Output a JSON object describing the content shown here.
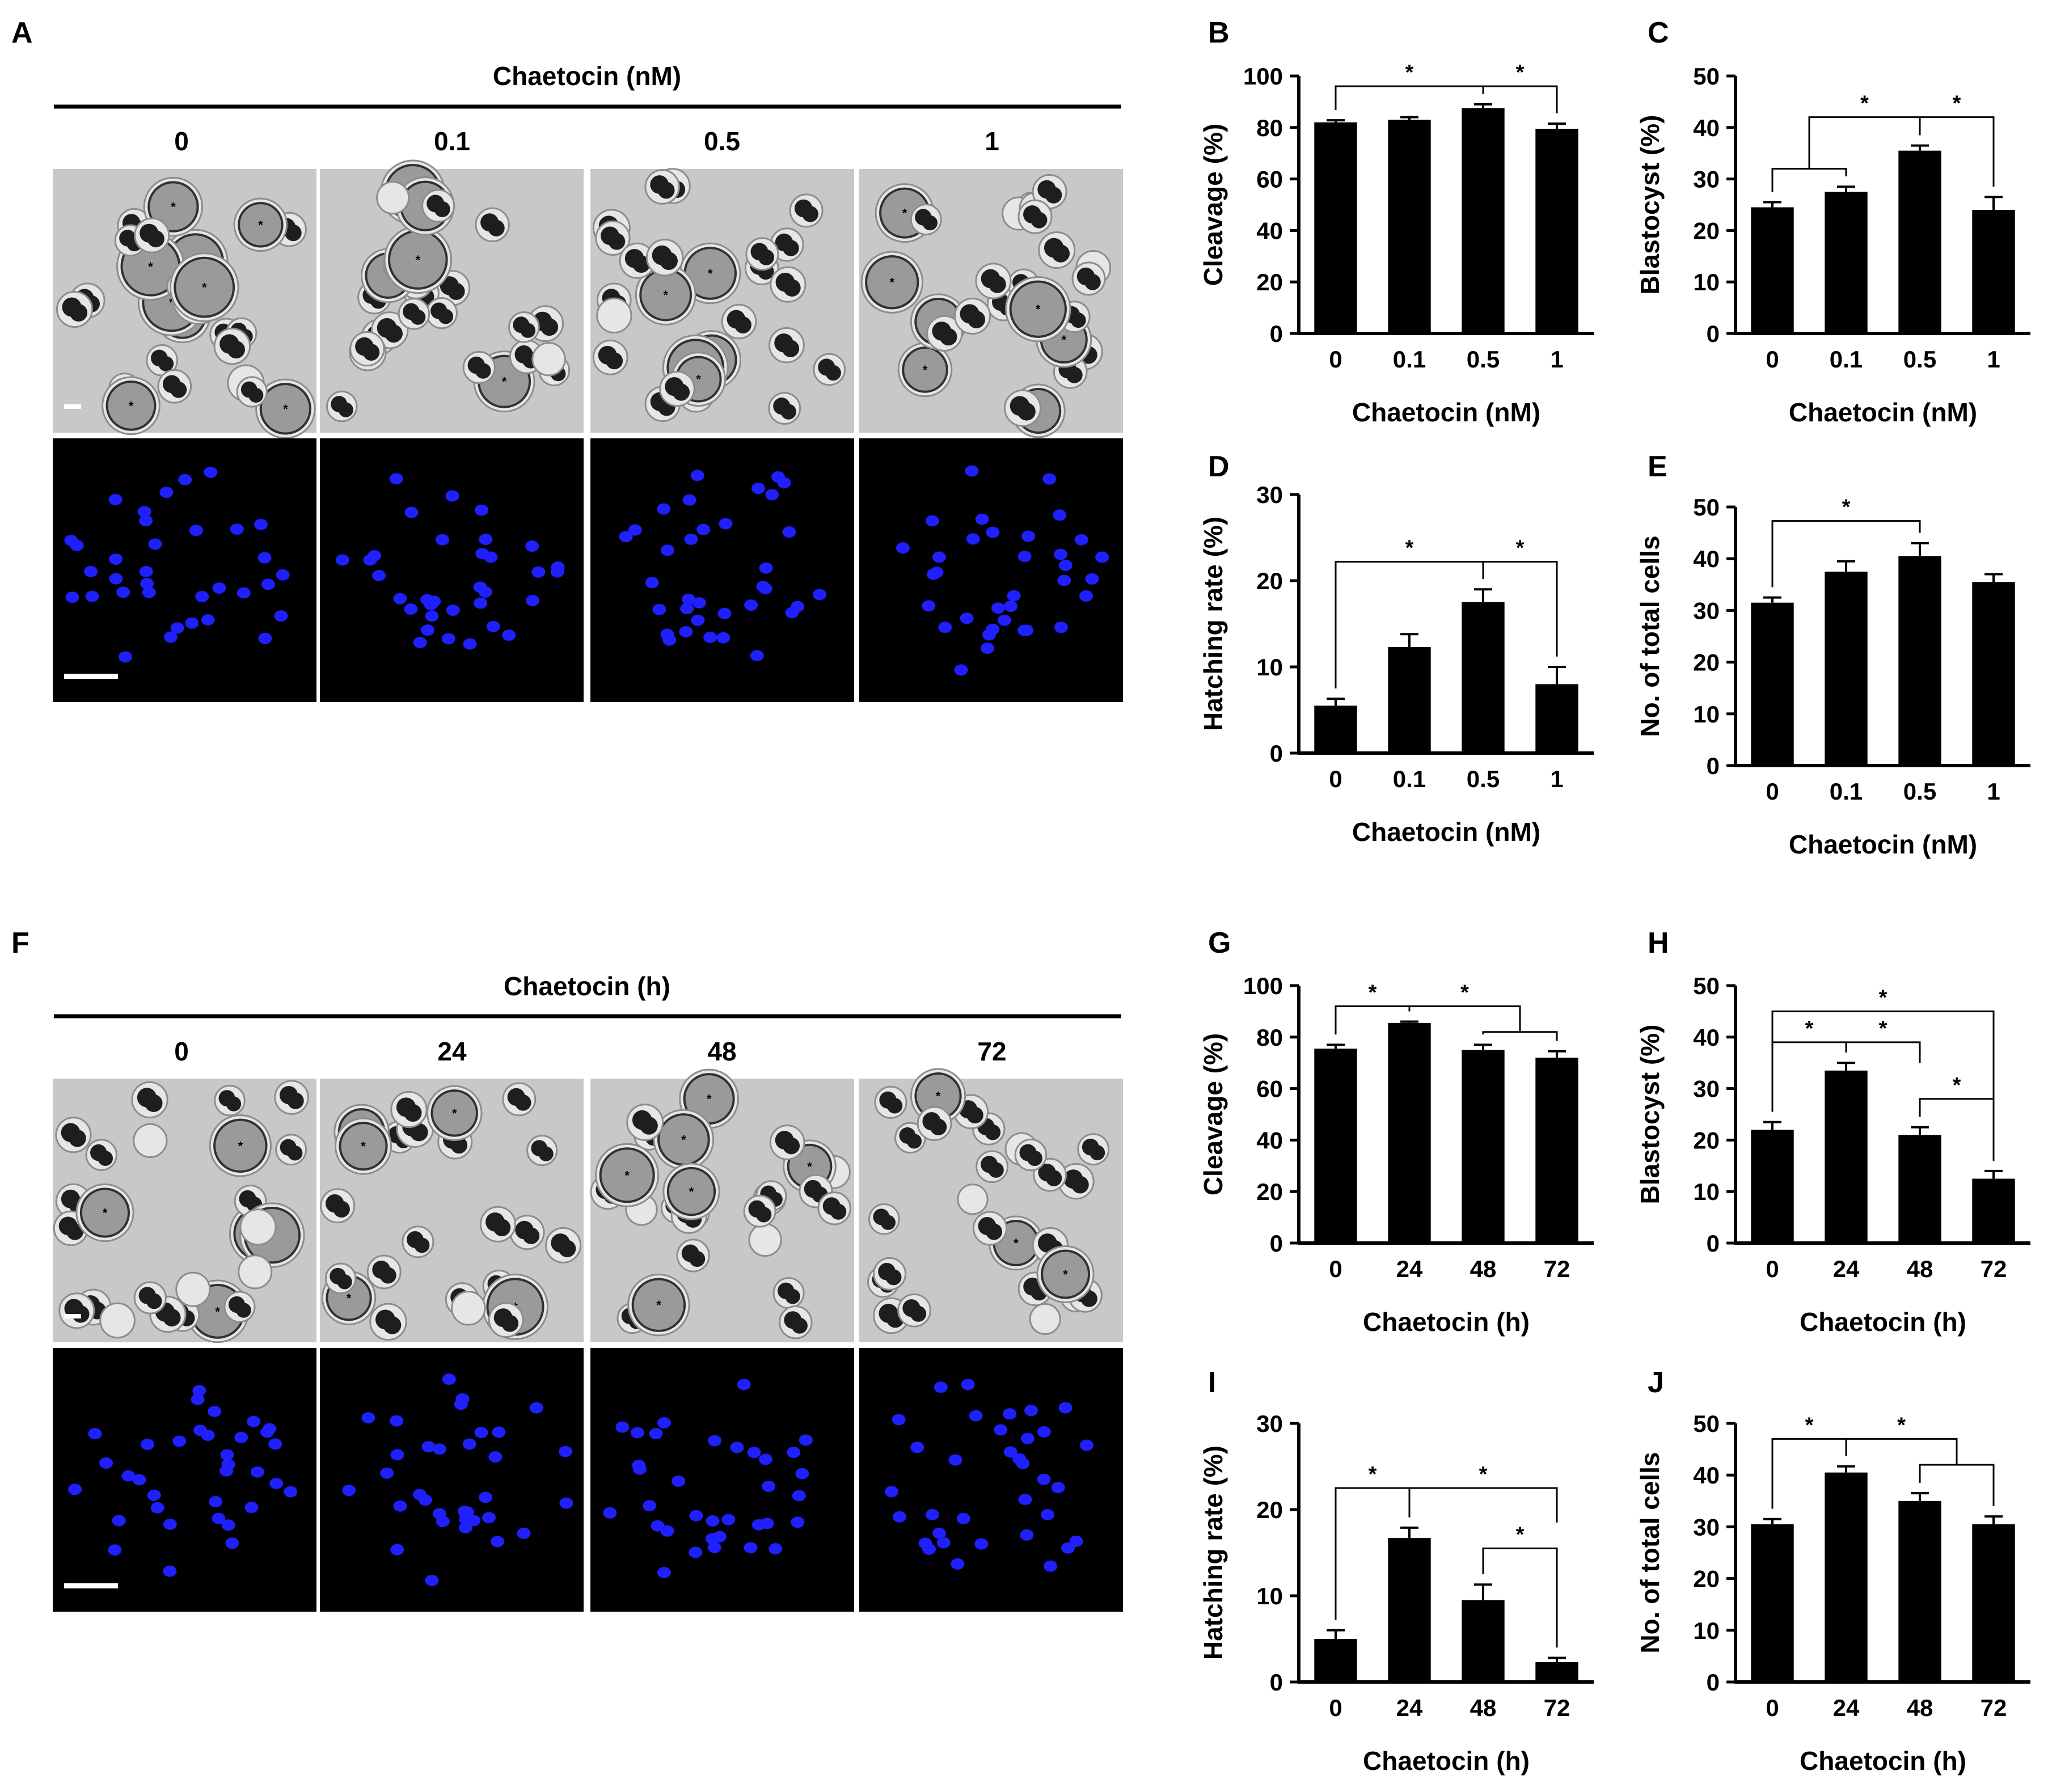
{
  "panels": {
    "A": {
      "letter": "A",
      "header": "Chaetocin (nM)",
      "columns": [
        "0",
        "0.1",
        "0.5",
        "1"
      ]
    },
    "F": {
      "letter": "F",
      "header": "Chaetocin (h)",
      "columns": [
        "0",
        "24",
        "48",
        "72"
      ]
    }
  },
  "chart_data": [
    {
      "id": "B",
      "type": "bar",
      "letter": "B",
      "categories": [
        "0",
        "0.1",
        "0.5",
        "1"
      ],
      "values": [
        82,
        83,
        87.5,
        79.5
      ],
      "errors": [
        0.8,
        1,
        1.5,
        2
      ],
      "ylim": [
        0,
        100
      ],
      "yticks": [
        0,
        20,
        40,
        60,
        80,
        100
      ],
      "ylabel": "Cleavage (%)",
      "xlabel": "Chaetocin (nM)",
      "grid": false,
      "significance": [
        {
          "kind": "pair",
          "i": 0,
          "j": 2,
          "level": 96,
          "label": "*"
        },
        {
          "kind": "pair",
          "i": 2,
          "j": 3,
          "level": 96,
          "label": "*"
        }
      ]
    },
    {
      "id": "C",
      "type": "bar",
      "letter": "C",
      "categories": [
        "0",
        "0.1",
        "0.5",
        "1"
      ],
      "values": [
        24.5,
        27.5,
        35.5,
        24
      ],
      "errors": [
        1,
        1,
        1,
        2.5
      ],
      "ylim": [
        0,
        50
      ],
      "yticks": [
        0,
        10,
        20,
        30,
        40,
        50
      ],
      "ylabel": "Blastocyst (%)",
      "xlabel": "Chaetocin (nM)",
      "grid": false,
      "significance": [
        {
          "kind": "group",
          "from": [
            0,
            1
          ],
          "level1": 32,
          "to": 2,
          "level2": 42,
          "label": "*"
        },
        {
          "kind": "pair",
          "i": 2,
          "j": 3,
          "level": 42,
          "label": "*"
        }
      ]
    },
    {
      "id": "D",
      "type": "bar",
      "letter": "D",
      "categories": [
        "0",
        "0.1",
        "0.5",
        "1"
      ],
      "values": [
        5.5,
        12.3,
        17.5,
        8
      ],
      "errors": [
        0.8,
        1.5,
        1.5,
        2
      ],
      "ylim": [
        0,
        30
      ],
      "yticks": [
        0,
        10,
        20,
        30
      ],
      "ylabel": "Hatching rate (%)",
      "xlabel": "Chaetocin (nM)",
      "grid": false,
      "significance": [
        {
          "kind": "pair",
          "i": 0,
          "j": 2,
          "level": 22.2,
          "label": "*"
        },
        {
          "kind": "pair",
          "i": 2,
          "j": 3,
          "level": 22.2,
          "label": "*"
        }
      ]
    },
    {
      "id": "E",
      "type": "bar",
      "letter": "E",
      "categories": [
        "0",
        "0.1",
        "0.5",
        "1"
      ],
      "values": [
        31.5,
        37.5,
        40.5,
        35.5
      ],
      "errors": [
        1,
        2,
        2.5,
        1.5
      ],
      "ylim": [
        0,
        50
      ],
      "yticks": [
        0,
        10,
        20,
        30,
        40,
        50
      ],
      "ylabel": "No. of total cells",
      "xlabel": "Chaetocin (nM)",
      "grid": false,
      "significance": [
        {
          "kind": "pair",
          "i": 0,
          "j": 2,
          "level": 47.3,
          "label": "*"
        }
      ]
    },
    {
      "id": "G",
      "type": "bar",
      "letter": "G",
      "categories": [
        "0",
        "24",
        "48",
        "72"
      ],
      "values": [
        75.5,
        85.5,
        75,
        72
      ],
      "errors": [
        1.5,
        0.5,
        2,
        2.5
      ],
      "ylim": [
        0,
        100
      ],
      "yticks": [
        0,
        20,
        40,
        60,
        80,
        100
      ],
      "ylabel": "Cleavage (%)",
      "xlabel": "Chaetocin (h)",
      "grid": false,
      "significance": [
        {
          "kind": "pair",
          "i": 0,
          "j": 1,
          "level": 92,
          "label": "*"
        },
        {
          "kind": "group",
          "from": [
            2,
            3
          ],
          "level1": 82,
          "to": 1,
          "level2": 92,
          "label": "*"
        }
      ]
    },
    {
      "id": "H",
      "type": "bar",
      "letter": "H",
      "categories": [
        "0",
        "24",
        "48",
        "72"
      ],
      "values": [
        22,
        33.5,
        21,
        12.5
      ],
      "errors": [
        1.5,
        1.5,
        1.5,
        1.5
      ],
      "ylim": [
        0,
        50
      ],
      "yticks": [
        0,
        10,
        20,
        30,
        40,
        50
      ],
      "ylabel": "Blastocyst (%)",
      "xlabel": "Chaetocin (h)",
      "grid": false,
      "significance": [
        {
          "kind": "pair",
          "i": 0,
          "j": 3,
          "level": 45,
          "label": "*"
        },
        {
          "kind": "pair",
          "i": 0,
          "j": 1,
          "level": 39,
          "label": "*"
        },
        {
          "kind": "pair",
          "i": 1,
          "j": 2,
          "level": 39,
          "label": "*",
          "drop_j": 35
        },
        {
          "kind": "pair",
          "i": 2,
          "j": 3,
          "level": 28,
          "label": "*"
        }
      ]
    },
    {
      "id": "I",
      "type": "bar",
      "letter": "I",
      "categories": [
        "0",
        "24",
        "48",
        "72"
      ],
      "values": [
        5,
        16.7,
        9.5,
        2.3
      ],
      "errors": [
        1,
        1.2,
        1.8,
        0.5
      ],
      "ylim": [
        0,
        30
      ],
      "yticks": [
        0,
        10,
        20,
        30
      ],
      "ylabel": "Hatching rate (%)",
      "xlabel": "Chaetocin (h)",
      "grid": false,
      "significance": [
        {
          "kind": "pair",
          "i": 0,
          "j": 1,
          "level": 22.5,
          "label": "*"
        },
        {
          "kind": "pair",
          "i": 1,
          "j": 3,
          "level": 22.5,
          "label": "*",
          "drop_j": 18.5
        },
        {
          "kind": "pair",
          "i": 2,
          "j": 3,
          "level": 15.5,
          "label": "*"
        }
      ]
    },
    {
      "id": "J",
      "type": "bar",
      "letter": "J",
      "categories": [
        "0",
        "24",
        "48",
        "72"
      ],
      "values": [
        30.5,
        40.5,
        35,
        30.5
      ],
      "errors": [
        1,
        1.2,
        1.5,
        1.5
      ],
      "ylim": [
        0,
        50
      ],
      "yticks": [
        0,
        10,
        20,
        30,
        40,
        50
      ],
      "ylabel": "No. of total cells",
      "xlabel": "Chaetocin (h)",
      "grid": false,
      "significance": [
        {
          "kind": "pair",
          "i": 0,
          "j": 1,
          "level": 47,
          "label": "*"
        },
        {
          "kind": "group",
          "from": [
            2,
            3
          ],
          "level1": 42,
          "to": 1,
          "level2": 47,
          "label": "*"
        }
      ]
    }
  ]
}
